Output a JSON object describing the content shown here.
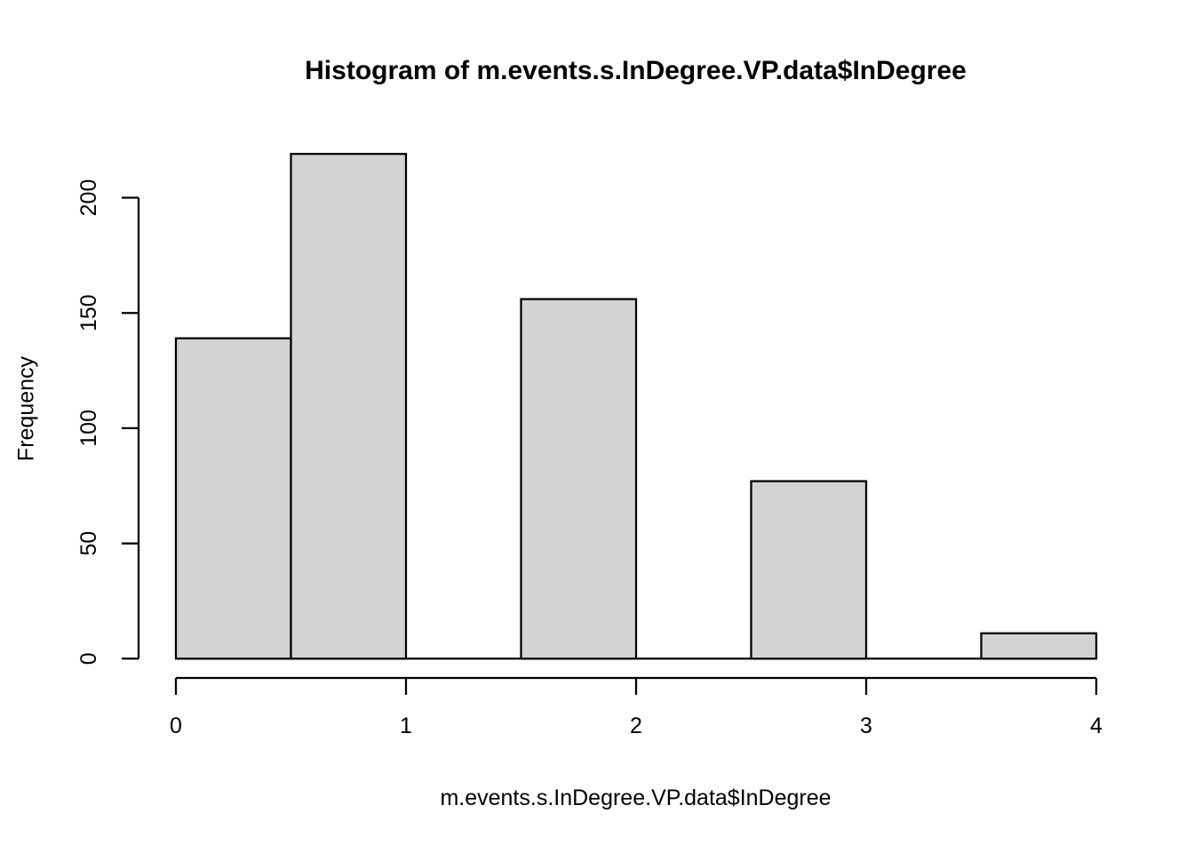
{
  "chart_data": {
    "type": "bar",
    "subtype": "histogram",
    "title": "Histogram of m.events.s.InDegree.VP.data$InDegree",
    "xlabel": "m.events.s.InDegree.VP.data$InDegree",
    "ylabel": "Frequency",
    "bins": [
      {
        "x0": 0.0,
        "x1": 0.5,
        "count": 139
      },
      {
        "x0": 0.5,
        "x1": 1.0,
        "count": 219
      },
      {
        "x0": 1.0,
        "x1": 1.5,
        "count": 0
      },
      {
        "x0": 1.5,
        "x1": 2.0,
        "count": 156
      },
      {
        "x0": 2.0,
        "x1": 2.5,
        "count": 0
      },
      {
        "x0": 2.5,
        "x1": 3.0,
        "count": 77
      },
      {
        "x0": 3.0,
        "x1": 3.5,
        "count": 0
      },
      {
        "x0": 3.5,
        "x1": 4.0,
        "count": 11
      }
    ],
    "x_ticks": [
      0,
      1,
      2,
      3,
      4
    ],
    "y_ticks": [
      0,
      50,
      100,
      150,
      200
    ],
    "xlim": [
      0,
      4
    ],
    "ylim": [
      0,
      200
    ],
    "grid": "off",
    "legend": "none",
    "bar_fill": "#d3d3d3",
    "bar_stroke": "#000000",
    "axis_color": "#000000",
    "background": "#ffffff"
  }
}
